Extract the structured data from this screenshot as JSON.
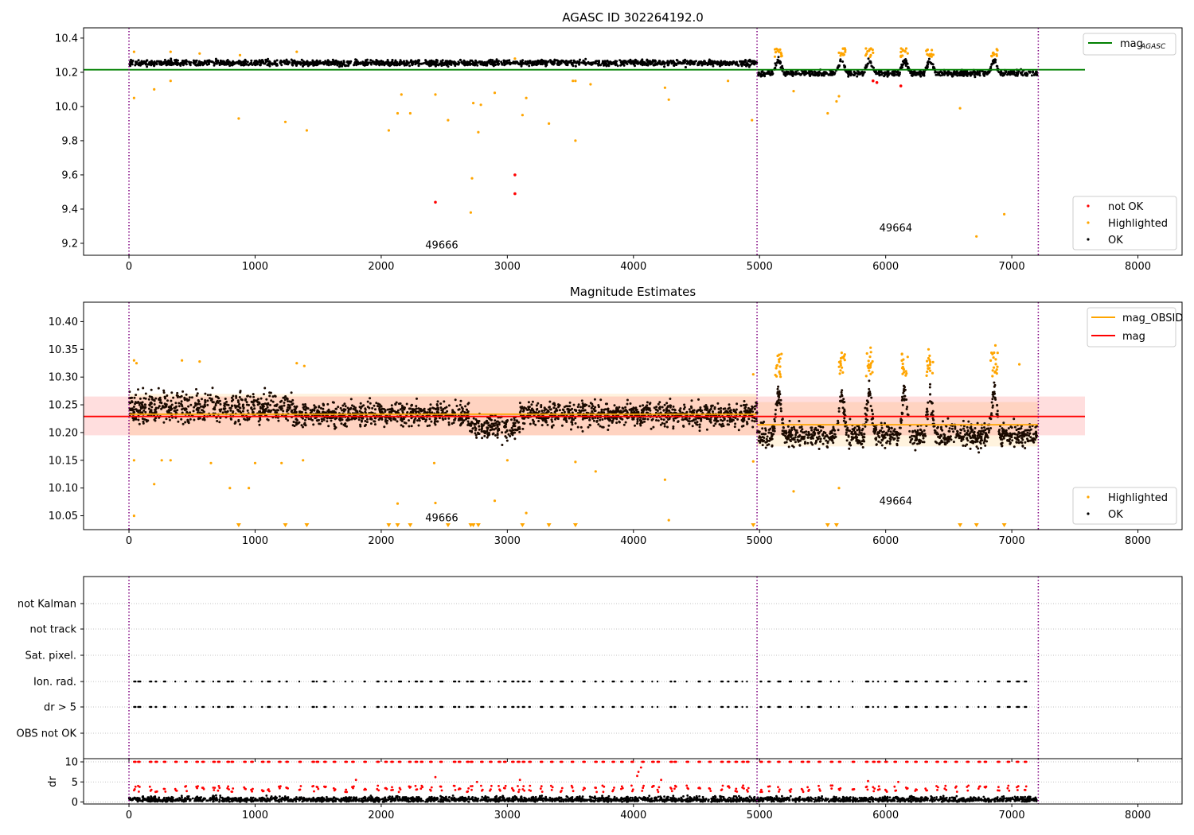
{
  "chart_data": [
    {
      "type": "scatter",
      "title": "AGASC ID 302264192.0",
      "xlim": [
        -360,
        8350
      ],
      "ylim": [
        9.13,
        10.46
      ],
      "x_ticks": [
        0,
        1000,
        2000,
        3000,
        4000,
        5000,
        6000,
        7000,
        8000
      ],
      "y_ticks": [
        9.2,
        9.4,
        9.6,
        9.8,
        10.0,
        10.2,
        10.4
      ],
      "obs_boundaries": [
        0,
        4980,
        7210
      ],
      "annotations": [
        {
          "text": "49666",
          "x": 2480,
          "y": 9.17
        },
        {
          "text": "49664",
          "x": 6080,
          "y": 9.27
        }
      ],
      "reference_lines": [
        {
          "name": "mag",
          "subscript": "AGASC",
          "y": 10.215,
          "x_range": [
            -360,
            7580
          ],
          "color": "#008000"
        }
      ],
      "series": [
        {
          "name": "not OK",
          "color": "#ff0000",
          "points": [
            [
              2430,
              9.44
            ],
            [
              3060,
              9.6
            ],
            [
              3060,
              9.49
            ],
            [
              5930,
              10.14
            ],
            [
              6120,
              10.12
            ],
            [
              5900,
              10.15
            ]
          ]
        },
        {
          "name": "Highlighted",
          "color": "#ffa500",
          "points": [
            [
              40,
              10.05
            ],
            [
              200,
              10.1
            ],
            [
              330,
              10.15
            ],
            [
              870,
              9.93
            ],
            [
              1240,
              9.91
            ],
            [
              1410,
              9.86
            ],
            [
              2060,
              9.86
            ],
            [
              2130,
              9.96
            ],
            [
              2160,
              10.07
            ],
            [
              2230,
              9.96
            ],
            [
              2430,
              10.07
            ],
            [
              2530,
              9.92
            ],
            [
              2710,
              9.38
            ],
            [
              2720,
              9.58
            ],
            [
              2730,
              10.02
            ],
            [
              2770,
              9.85
            ],
            [
              2790,
              10.01
            ],
            [
              2900,
              10.08
            ],
            [
              3120,
              9.95
            ],
            [
              3150,
              10.05
            ],
            [
              3330,
              9.9
            ],
            [
              3540,
              9.8
            ],
            [
              3540,
              10.15
            ],
            [
              4250,
              10.11
            ],
            [
              4280,
              10.04
            ],
            [
              4940,
              9.92
            ],
            [
              5270,
              10.09
            ],
            [
              5540,
              9.96
            ],
            [
              5610,
              10.03
            ],
            [
              5630,
              10.06
            ],
            [
              6590,
              9.99
            ],
            [
              6720,
              9.24
            ],
            [
              6940,
              9.37
            ]
          ]
        },
        {
          "name": "OK",
          "color": "#000000"
        }
      ],
      "legend": {
        "reference": "top-right",
        "points": "bottom-right"
      }
    },
    {
      "type": "scatter",
      "title": "Magnitude Estimates",
      "xlim": [
        -360,
        8350
      ],
      "ylim": [
        10.025,
        10.435
      ],
      "x_ticks": [
        0,
        1000,
        2000,
        3000,
        4000,
        5000,
        6000,
        7000,
        8000
      ],
      "y_ticks": [
        10.05,
        10.1,
        10.15,
        10.2,
        10.25,
        10.3,
        10.35,
        10.4
      ],
      "obs_boundaries": [
        0,
        4980,
        7210
      ],
      "annotations": [
        {
          "text": "49666",
          "x": 2480,
          "y": 10.04
        },
        {
          "text": "49664",
          "x": 6080,
          "y": 10.07
        }
      ],
      "bands": [
        {
          "name": "mag_OBSID",
          "color": "#ffa500",
          "segments": [
            {
              "x": [
                0,
                4980
              ],
              "y": 10.233,
              "lo": 10.195,
              "hi": 10.27
            },
            {
              "x": [
                4980,
                7210
              ],
              "y": 10.214,
              "lo": 10.175,
              "hi": 10.255
            }
          ]
        },
        {
          "name": "mag",
          "color": "#ff0000",
          "segments": [
            {
              "x": [
                -360,
                7580
              ],
              "y": 10.229,
              "lo": 10.195,
              "hi": 10.265
            }
          ]
        }
      ],
      "series": [
        {
          "name": "Highlighted",
          "color": "#ffa500",
          "points": [
            [
              40,
              10.05
            ],
            [
              200,
              10.107
            ],
            [
              330,
              10.15
            ],
            [
              800,
              10.1
            ],
            [
              950,
              10.1
            ],
            [
              1380,
              10.15
            ],
            [
              2130,
              10.072
            ],
            [
              2430,
              10.073
            ],
            [
              2900,
              10.077
            ],
            [
              3150,
              10.055
            ],
            [
              3700,
              10.13
            ],
            [
              4250,
              10.115
            ],
            [
              4280,
              10.042
            ],
            [
              5270,
              10.094
            ],
            [
              5630,
              10.1
            ]
          ]
        },
        {
          "name": "OK",
          "color": "#000000"
        }
      ],
      "clipped_low_markers_x": [
        870,
        1240,
        1410,
        2060,
        2130,
        2230,
        2530,
        2710,
        2730,
        2770,
        3120,
        3330,
        3540,
        4950,
        5540,
        5610,
        6590,
        6720,
        6940
      ],
      "legend": {
        "reference": "top-right",
        "points": "bottom-right"
      }
    },
    {
      "type": "scatter",
      "title": "",
      "xlim": [
        -360,
        8350
      ],
      "categories": [
        "OBS not OK",
        "dr > 5",
        "Ion. rad.",
        "Sat. pixel.",
        "not track",
        "not Kalman"
      ],
      "obs_boundaries": [
        0,
        4980,
        7210
      ],
      "flag_rows_points_color": "#000000"
    },
    {
      "type": "scatter",
      "title": "",
      "ylabel": "dr",
      "xlim": [
        -360,
        8350
      ],
      "ylim": [
        -0.5,
        10.8
      ],
      "x_ticks": [
        0,
        1000,
        2000,
        3000,
        4000,
        5000,
        6000,
        7000,
        8000
      ],
      "y_ticks": [
        0,
        5,
        10
      ],
      "obs_boundaries": [
        0,
        4980,
        7210
      ],
      "series": [
        {
          "name": "OK",
          "color": "#000000"
        },
        {
          "name": "not OK",
          "color": "#ff0000"
        }
      ]
    }
  ]
}
